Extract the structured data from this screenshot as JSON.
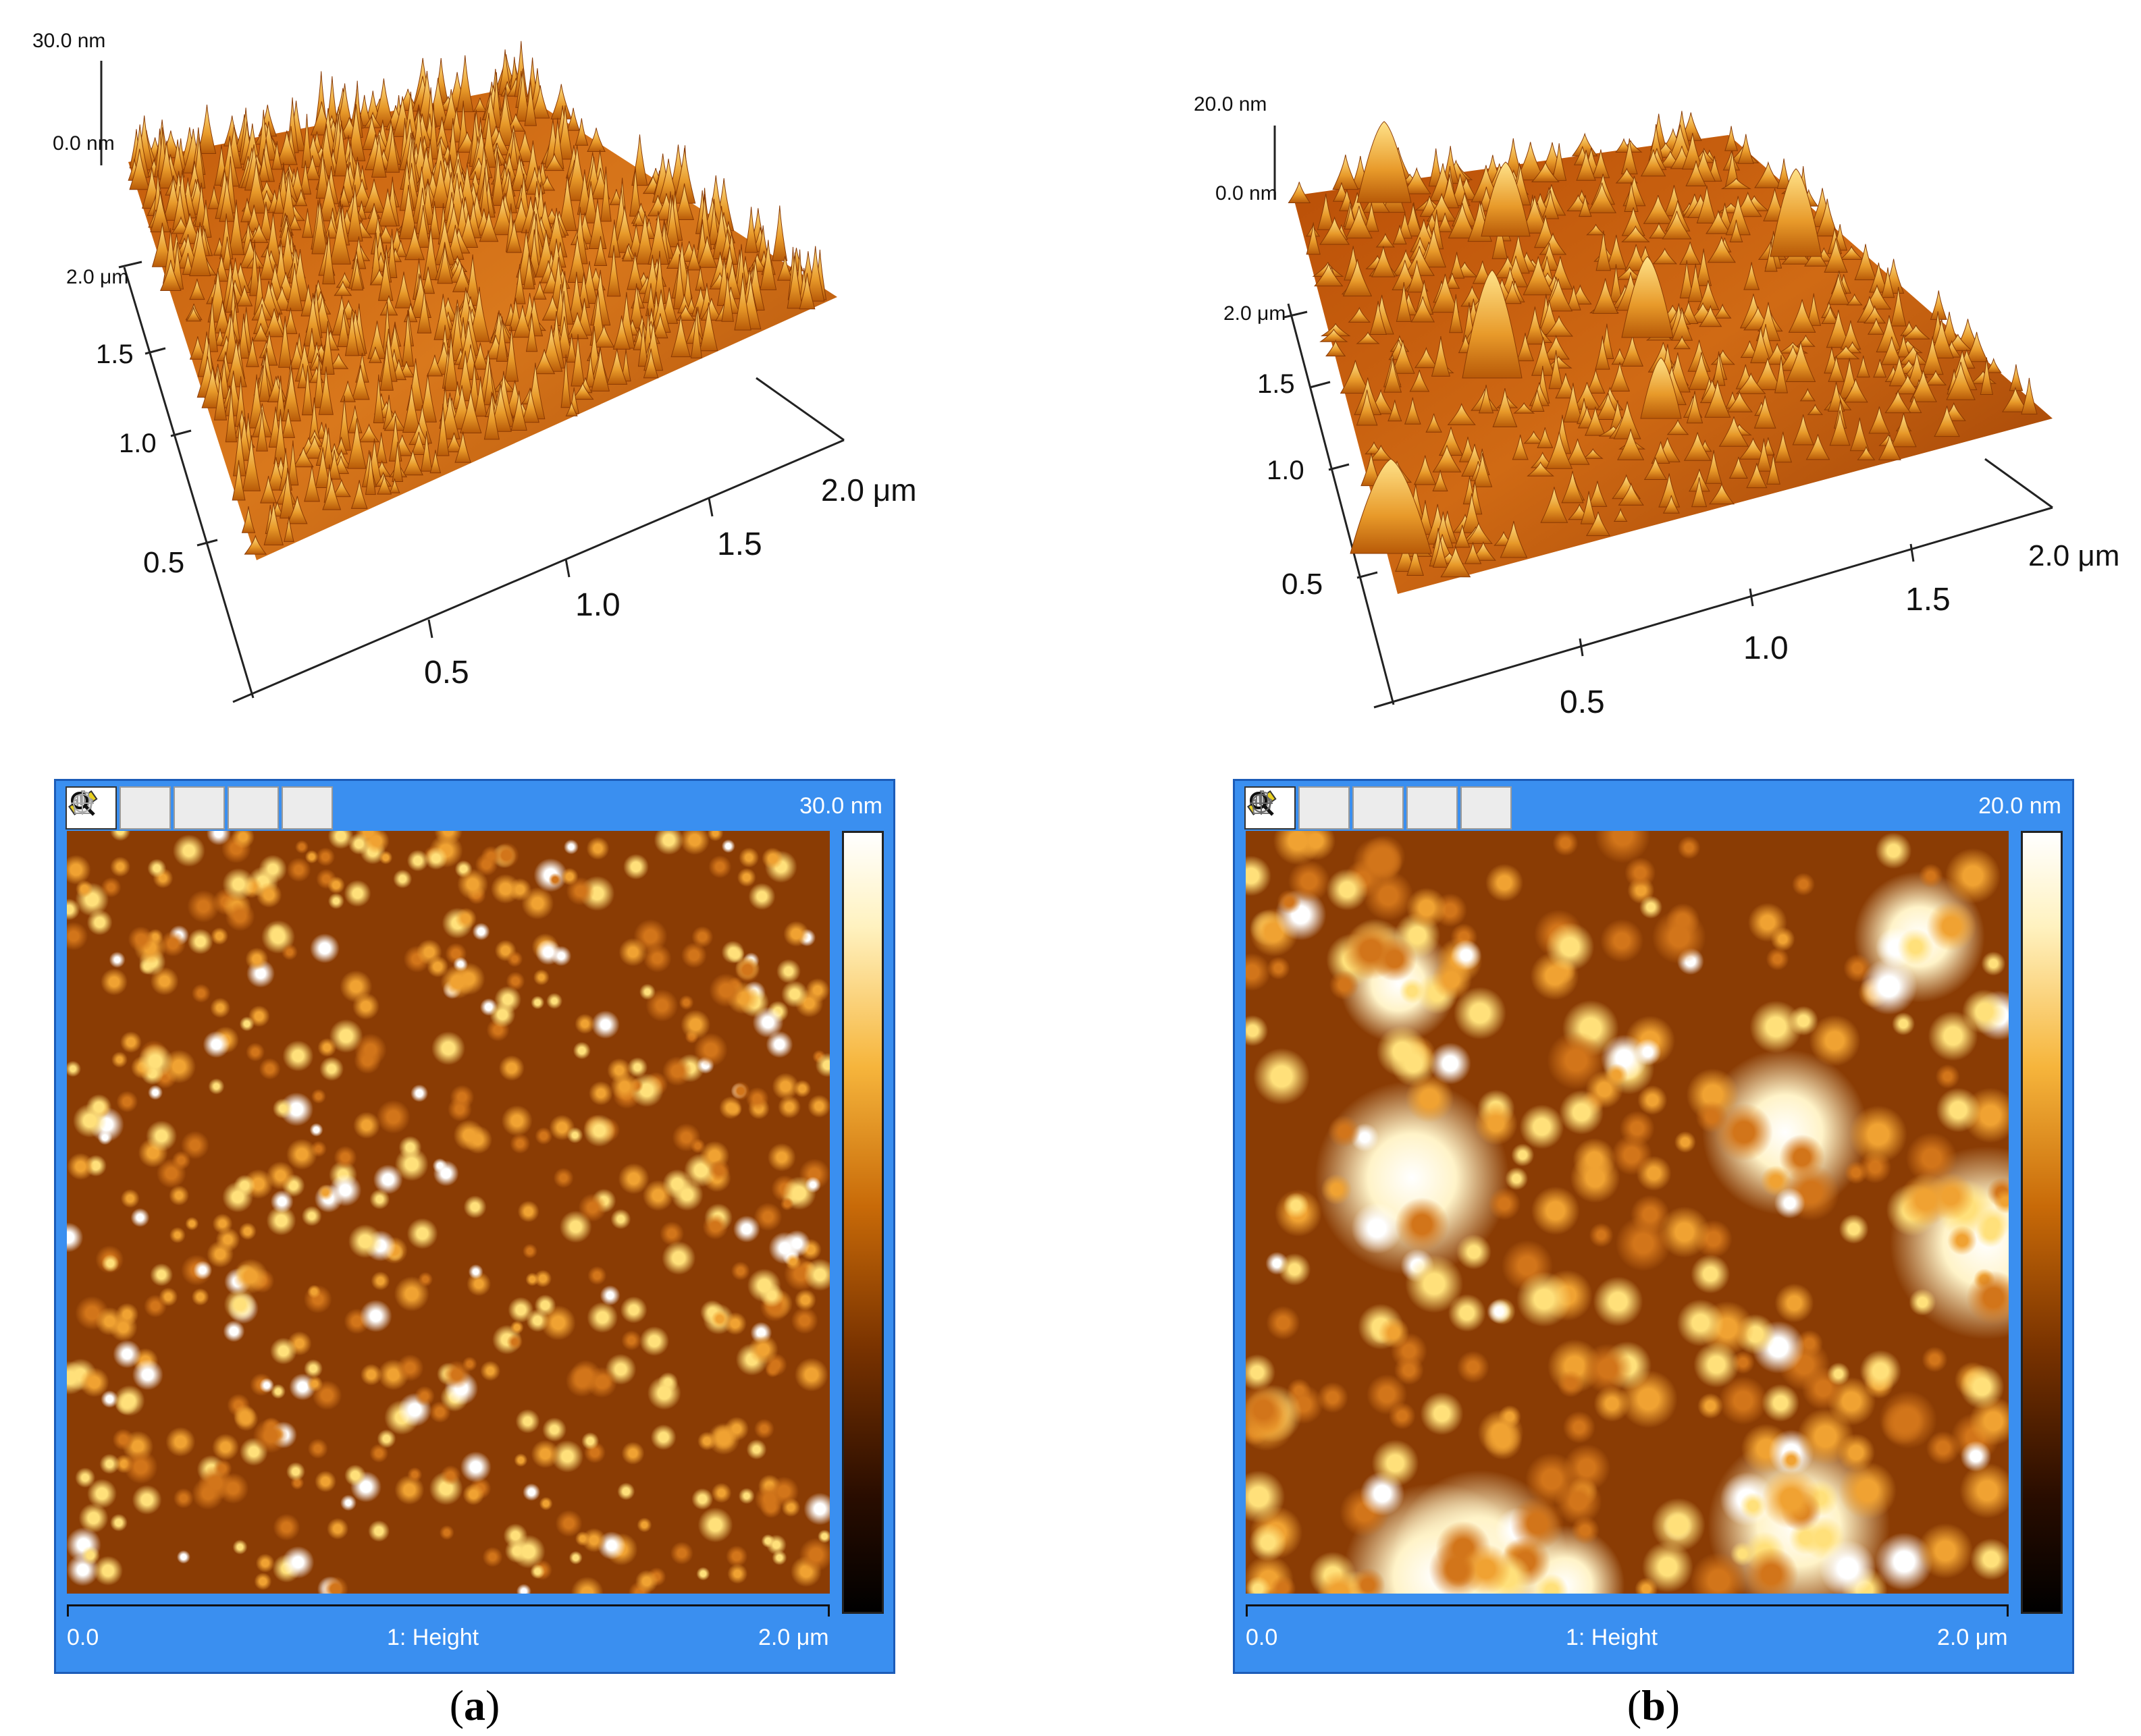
{
  "panels": [
    {
      "id": "a",
      "caption": "a",
      "surface_3d": {
        "z_max_label": "30.0 nm",
        "z_zero_label": "0.0 nm",
        "y_ticks": [
          "2.0 μm",
          "1.5",
          "1.0",
          "0.5"
        ],
        "x_ticks": [
          "0.5",
          "1.0",
          "1.5",
          "2.0 μm"
        ]
      },
      "window": {
        "tools": [
          "ruler-icon",
          "hand-icon",
          "magnifier-icon",
          "zoom-in-icon",
          "zoom-out-icon"
        ],
        "colorbar_max": "30.0 nm",
        "x_start": "0.0",
        "channel": "1: Height",
        "x_end": "2.0 μm"
      }
    },
    {
      "id": "b",
      "caption": "b",
      "surface_3d": {
        "z_max_label": "20.0 nm",
        "z_zero_label": "0.0 nm",
        "y_ticks": [
          "2.0 μm",
          "1.5",
          "1.0",
          "0.5"
        ],
        "x_ticks": [
          "0.5",
          "1.0",
          "1.5",
          "2.0 μm"
        ]
      },
      "window": {
        "tools": [
          "ruler-icon",
          "hand-icon",
          "magnifier-icon",
          "zoom-in-icon",
          "zoom-out-icon"
        ],
        "colorbar_max": "20.0 nm",
        "x_start": "0.0",
        "channel": "1: Height",
        "x_end": "2.0 μm"
      }
    }
  ],
  "colors": {
    "window_bg": "#3a8ff0",
    "surface_dark": "#7a3300",
    "surface_mid": "#d4741a",
    "surface_bright": "#ffe27a"
  }
}
